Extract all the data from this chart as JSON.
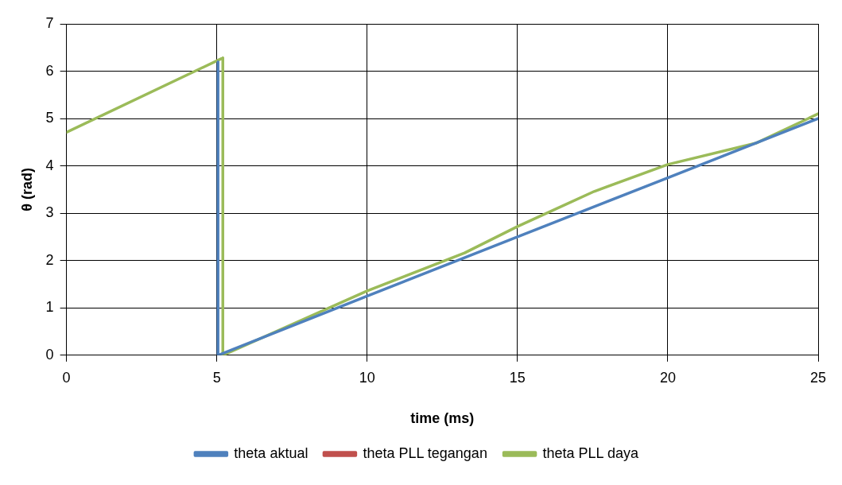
{
  "chart_data": {
    "type": "line",
    "xlabel": "time (ms)",
    "ylabel": "θ (rad)",
    "xlim": [
      0,
      25
    ],
    "xticks": [
      0,
      5,
      10,
      15,
      20,
      25
    ],
    "ylim": [
      0,
      7
    ],
    "yticks": [
      0,
      1,
      2,
      3,
      4,
      5,
      6,
      7
    ],
    "grid": true,
    "legend": "bottom",
    "marker": "none",
    "line_style": "solid",
    "series": [
      {
        "name": "theta aktual",
        "color": "#4f81bd",
        "x": [
          5.04,
          5.04,
          10,
          15,
          20,
          25
        ],
        "values": [
          6.2,
          0,
          1.25,
          2.5,
          3.75,
          5.0
        ]
      },
      {
        "name": "theta PLL tegangan",
        "color": "#c0504d"
      },
      {
        "name": "theta PLL daya",
        "color": "#9bbb59",
        "x": [
          0,
          5.2,
          5.2,
          10,
          13.24,
          15,
          17.55,
          20,
          22.93,
          25
        ],
        "values": [
          4.71,
          6.28,
          0,
          1.36,
          2.16,
          2.72,
          3.46,
          4.03,
          4.48,
          5.1
        ]
      }
    ]
  }
}
